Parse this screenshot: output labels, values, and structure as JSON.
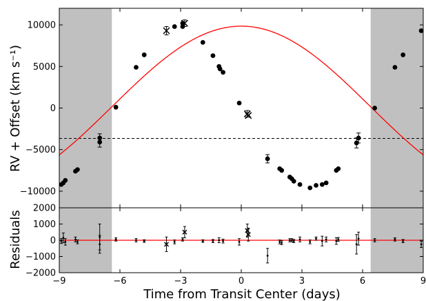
{
  "chart_data": {
    "type": "scatter",
    "xlabel": "Time from Transit Center (days)",
    "x_ticks": [
      -9,
      -6,
      -3,
      0,
      3,
      6,
      9
    ],
    "x_tick_labels": [
      "−9",
      "−6",
      "−3",
      "0",
      "3",
      "6",
      "9"
    ],
    "xlim": [
      -9,
      9
    ],
    "shaded_regions": [
      [
        -9,
        -6.4
      ],
      [
        6.4,
        9
      ]
    ],
    "colors": {
      "model": "#ff0000",
      "shade": "#c0c0c0",
      "points": "#000000"
    },
    "panels": [
      {
        "name": "rv",
        "ylabel": "RV + Offset (km s⁻¹)",
        "ylim": [
          -12000,
          12000
        ],
        "y_ticks": [
          -10000,
          -5000,
          0,
          5000,
          10000
        ],
        "y_tick_labels": [
          "−10000",
          "−5000",
          "0",
          "5000",
          "10000"
        ],
        "reference_line": -3650,
        "model": {
          "amplitude": 9700,
          "offset": 150,
          "period": 25.6,
          "zero_time": 1.2,
          "phase_shift": -6.4
        },
        "series": [
          {
            "name": "dots",
            "marker": "circle",
            "points": [
              [
                -8.9,
                -9200
              ],
              [
                -8.8,
                -9000
              ],
              [
                -8.7,
                -8700
              ],
              [
                -8.2,
                -7600
              ],
              [
                -8.1,
                -7400
              ],
              [
                -7.0,
                -4100
              ],
              [
                -7.0,
                -3600
              ],
              [
                -6.2,
                100
              ],
              [
                -5.2,
                4900
              ],
              [
                -4.8,
                6400
              ],
              [
                -3.3,
                9800
              ],
              [
                -2.9,
                10200
              ],
              [
                -2.9,
                9800
              ],
              [
                -1.9,
                7900
              ],
              [
                -1.4,
                6300
              ],
              [
                -1.1,
                5000
              ],
              [
                -1.05,
                4700
              ],
              [
                -0.9,
                4300
              ],
              [
                -0.1,
                600
              ],
              [
                1.3,
                -6100
              ],
              [
                1.9,
                -7300
              ],
              [
                2.0,
                -7500
              ],
              [
                2.4,
                -8300
              ],
              [
                2.5,
                -8500
              ],
              [
                2.6,
                -8800
              ],
              [
                2.9,
                -9200
              ],
              [
                3.4,
                -9600
              ],
              [
                3.7,
                -9300
              ],
              [
                4.0,
                -9200
              ],
              [
                4.2,
                -9000
              ],
              [
                4.7,
                -7500
              ],
              [
                4.8,
                -7300
              ],
              [
                5.7,
                -4200
              ],
              [
                5.8,
                -3600
              ],
              [
                6.6,
                0
              ],
              [
                7.6,
                4900
              ],
              [
                8.0,
                6400
              ],
              [
                8.9,
                9300
              ]
            ]
          },
          {
            "name": "crosses",
            "marker": "x",
            "points": [
              [
                -3.7,
                9300
              ],
              [
                -2.8,
                10200
              ],
              [
                0.3,
                -700
              ],
              [
                0.35,
                -900
              ]
            ]
          }
        ],
        "error_bars": [
          [
            -7.0,
            -4100,
            600
          ],
          [
            -7.0,
            -3600,
            500
          ],
          [
            5.7,
            -4200,
            600
          ],
          [
            5.8,
            -3600,
            600
          ],
          [
            1.3,
            -6100,
            500
          ],
          [
            -3.7,
            9300,
            500
          ],
          [
            -2.8,
            10200,
            400
          ],
          [
            0.3,
            -700,
            400
          ]
        ]
      },
      {
        "name": "residuals",
        "ylabel": "Residuals",
        "ylim": [
          -2000,
          2000
        ],
        "y_ticks": [
          -2000,
          -1000,
          0,
          1000,
          2000
        ],
        "y_tick_labels": [
          "−2000",
          "−1000",
          "0",
          "1000",
          "2000"
        ],
        "reference_line": 0,
        "series": [
          {
            "name": "dots",
            "marker": "circle",
            "points": [
              [
                -8.9,
                -50,
                150
              ],
              [
                -8.8,
                150,
                300
              ],
              [
                -8.7,
                -100,
                200
              ],
              [
                -8.2,
                50,
                150
              ],
              [
                -8.1,
                -100,
                120
              ],
              [
                -7.0,
                200,
                800
              ],
              [
                -7.0,
                -250,
                550
              ],
              [
                -6.2,
                50,
                100
              ],
              [
                -5.2,
                0,
                100
              ],
              [
                -4.8,
                -50,
                80
              ],
              [
                -3.3,
                -100,
                120
              ],
              [
                -2.9,
                50,
                100
              ],
              [
                -1.9,
                -50,
                80
              ],
              [
                -1.4,
                -50,
                100
              ],
              [
                -1.1,
                0,
                150
              ],
              [
                -0.9,
                -50,
                120
              ],
              [
                -0.1,
                -100,
                200
              ],
              [
                1.3,
                -950,
                450
              ],
              [
                1.9,
                -100,
                120
              ],
              [
                2.0,
                -150,
                120
              ],
              [
                2.4,
                0,
                100
              ],
              [
                2.5,
                0,
                100
              ],
              [
                2.6,
                -50,
                100
              ],
              [
                2.9,
                50,
                150
              ],
              [
                3.4,
                -100,
                120
              ],
              [
                3.7,
                100,
                100
              ],
              [
                4.0,
                -50,
                300
              ],
              [
                4.2,
                50,
                150
              ],
              [
                4.7,
                -50,
                200
              ],
              [
                4.8,
                50,
                120
              ],
              [
                5.7,
                -250,
                600
              ],
              [
                5.8,
                100,
                400
              ],
              [
                6.6,
                0,
                100
              ],
              [
                7.6,
                50,
                100
              ],
              [
                8.0,
                -50,
                100
              ],
              [
                8.9,
                -250,
                200
              ]
            ]
          },
          {
            "name": "crosses",
            "marker": "x",
            "points": [
              [
                -3.7,
                -250,
                450
              ],
              [
                -2.8,
                500,
                350
              ],
              [
                0.3,
                600,
                400
              ],
              [
                0.35,
                350,
                400
              ]
            ]
          }
        ]
      }
    ]
  }
}
